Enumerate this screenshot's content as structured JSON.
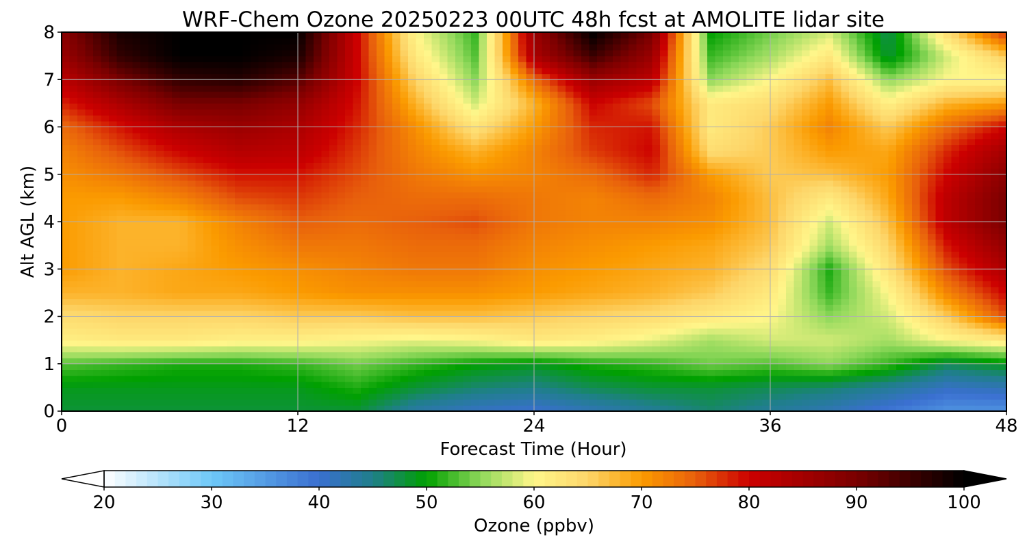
{
  "chart_data": {
    "type": "heatmap",
    "title": "WRF-Chem Ozone  20250223 00UTC 48h fcst at AMOLITE lidar site",
    "xlabel": "Forecast Time (Hour)",
    "ylabel": "Alt AGL (km)",
    "xlim": [
      0,
      48
    ],
    "ylim": [
      0,
      8
    ],
    "x_ticks": [
      0,
      12,
      24,
      36,
      48
    ],
    "y_ticks": [
      0,
      1,
      2,
      3,
      4,
      5,
      6,
      7,
      8
    ],
    "grid": true,
    "x": [
      0,
      3,
      6,
      9,
      12,
      15,
      18,
      21,
      24,
      27,
      30,
      33,
      36,
      39,
      42,
      45,
      48
    ],
    "y": [
      0,
      0.5,
      1,
      1.5,
      2,
      2.5,
      3,
      3.5,
      4,
      4.5,
      5,
      5.5,
      6,
      6.5,
      7,
      7.5,
      8
    ],
    "z_units": "ppbv",
    "values": [
      [
        48,
        48,
        48,
        48,
        48,
        48,
        43,
        41,
        40,
        42,
        44,
        46,
        44,
        42,
        39,
        36,
        36
      ],
      [
        49,
        49,
        49,
        49,
        49,
        51,
        48,
        46,
        45,
        47,
        48,
        48,
        47,
        46,
        44,
        41,
        42
      ],
      [
        53,
        52,
        51,
        51,
        52,
        54,
        52,
        50,
        49,
        51,
        52,
        54,
        53,
        55,
        52,
        47,
        49
      ],
      [
        61,
        62,
        62,
        61,
        61,
        60,
        59,
        60,
        62,
        61,
        59,
        56,
        58,
        58,
        56,
        60,
        62
      ],
      [
        64,
        65,
        65,
        65,
        66,
        66,
        67,
        67,
        66,
        65,
        64,
        62,
        60,
        55,
        58,
        66,
        76
      ],
      [
        68,
        68,
        69,
        69,
        70,
        71,
        71,
        71,
        70,
        69,
        68,
        66,
        62,
        52,
        60,
        72,
        80
      ],
      [
        70,
        68,
        69,
        70,
        71,
        72,
        73,
        73,
        71,
        70,
        69,
        68,
        64,
        51,
        63,
        76,
        84
      ],
      [
        70,
        68,
        68,
        71,
        73,
        73,
        74,
        74,
        72,
        71,
        70,
        69,
        66,
        56,
        65,
        79,
        87
      ],
      [
        70,
        68,
        68,
        72,
        75,
        74,
        75,
        76,
        73,
        72,
        72,
        71,
        67,
        58,
        67,
        82,
        90
      ],
      [
        70,
        70,
        72,
        76,
        77,
        75,
        74,
        74,
        73,
        72,
        74,
        72,
        67,
        62,
        69,
        82,
        90
      ],
      [
        71,
        73,
        76,
        79,
        79,
        76,
        73,
        71,
        72,
        74,
        78,
        70,
        66,
        67,
        70,
        80,
        88
      ],
      [
        72,
        76,
        80,
        83,
        82,
        77,
        72,
        68,
        72,
        77,
        80,
        64,
        66,
        70,
        69,
        78,
        85
      ],
      [
        74,
        79,
        84,
        86,
        84,
        78,
        71,
        63,
        70,
        78,
        79,
        62,
        66,
        72,
        66,
        74,
        80
      ],
      [
        78,
        84,
        90,
        90,
        87,
        79,
        68,
        58,
        68,
        80,
        76,
        62,
        64,
        70,
        61,
        68,
        70
      ],
      [
        82,
        90,
        96,
        97,
        93,
        80,
        65,
        55,
        74,
        86,
        82,
        55,
        60,
        67,
        55,
        60,
        60
      ],
      [
        86,
        96,
        100,
        100,
        98,
        80,
        62,
        53,
        84,
        95,
        86,
        52,
        56,
        62,
        48,
        58,
        66
      ],
      [
        88,
        98,
        100,
        100,
        100,
        80,
        60,
        52,
        86,
        100,
        90,
        50,
        54,
        58,
        47,
        64,
        78
      ]
    ],
    "colorbar": {
      "label": "Ozone  (ppbv)",
      "min": 20,
      "max": 100,
      "ticks": [
        20,
        30,
        40,
        50,
        60,
        70,
        80,
        90,
        100
      ],
      "extend": "both",
      "stops": [
        {
          "v": 20,
          "c": "#ffffff"
        },
        {
          "v": 30,
          "c": "#6ec8f8"
        },
        {
          "v": 40,
          "c": "#3a6fd0"
        },
        {
          "v": 45,
          "c": "#1f7f8a"
        },
        {
          "v": 50,
          "c": "#00a000"
        },
        {
          "v": 55,
          "c": "#8ed85a"
        },
        {
          "v": 60,
          "c": "#fff68a"
        },
        {
          "v": 65,
          "c": "#fdd66a"
        },
        {
          "v": 70,
          "c": "#fb9b00"
        },
        {
          "v": 75,
          "c": "#e8600c"
        },
        {
          "v": 80,
          "c": "#cc0000"
        },
        {
          "v": 90,
          "c": "#7a0000"
        },
        {
          "v": 100,
          "c": "#000000"
        }
      ]
    }
  }
}
